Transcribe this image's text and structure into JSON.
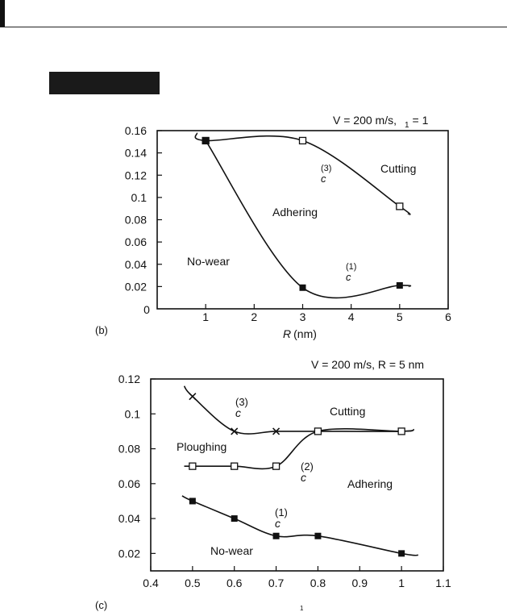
{
  "chart_data": [
    {
      "type": "line",
      "panel_label": "(b)",
      "condition": {
        "prefix": "V = 200 m/s,",
        "subscript": "1",
        "suffix": "= 1"
      },
      "xlabel": {
        "var": "R",
        "unit": "(nm)"
      },
      "xlim": [
        0,
        6
      ],
      "ylim": [
        0,
        0.16
      ],
      "x_ticks": [
        "1",
        "2",
        "3",
        "4",
        "5",
        "6"
      ],
      "x_origin_label": "0",
      "y_ticks": [
        "0.02",
        "0.04",
        "0.06",
        "0.08",
        "0.1",
        "0.12",
        "0.14",
        "0.16"
      ],
      "series": [
        {
          "label": "(3)",
          "sublabel": "c",
          "marker": "open-square",
          "points": [
            [
              1,
              0.151
            ],
            [
              3,
              0.151
            ],
            [
              5,
              0.092
            ]
          ]
        },
        {
          "label": "(1)",
          "sublabel": "c",
          "marker": "filled-square",
          "points": [
            [
              1,
              0.151
            ],
            [
              3,
              0.019
            ],
            [
              5,
              0.021
            ]
          ]
        }
      ],
      "regions": [
        "Cutting",
        "Adhering",
        "No-wear"
      ]
    },
    {
      "type": "line",
      "panel_label": "(c)",
      "condition": {
        "text": "V = 200 m/s, R = 5 nm"
      },
      "xlabel": {
        "subscript": "1"
      },
      "xlim": [
        0.4,
        1.1
      ],
      "ylim": [
        0.01,
        0.12
      ],
      "x_ticks": [
        "0.4",
        "0.5",
        "0.6",
        "0.7",
        "0.8",
        "0.9",
        "1",
        "1.1"
      ],
      "y_ticks": [
        "0.02",
        "0.04",
        "0.06",
        "0.08",
        "0.1",
        "0.12"
      ],
      "series": [
        {
          "label": "(3)",
          "sublabel": "c",
          "marker": "cross",
          "points": [
            [
              0.5,
              0.11
            ],
            [
              0.6,
              0.09
            ],
            [
              0.7,
              0.09
            ],
            [
              0.8,
              0.09
            ],
            [
              1.0,
              0.09
            ]
          ]
        },
        {
          "label": "(2)",
          "sublabel": "c",
          "marker": "open-square",
          "points": [
            [
              0.5,
              0.07
            ],
            [
              0.6,
              0.07
            ],
            [
              0.7,
              0.07
            ],
            [
              0.8,
              0.09
            ],
            [
              1.0,
              0.09
            ]
          ]
        },
        {
          "label": "(1)",
          "sublabel": "c",
          "marker": "filled-square",
          "points": [
            [
              0.5,
              0.05
            ],
            [
              0.6,
              0.04
            ],
            [
              0.7,
              0.03
            ],
            [
              0.8,
              0.03
            ],
            [
              1.0,
              0.02
            ]
          ]
        }
      ],
      "regions": [
        "Cutting",
        "Ploughing",
        "Adhering",
        "No-wear"
      ]
    }
  ]
}
